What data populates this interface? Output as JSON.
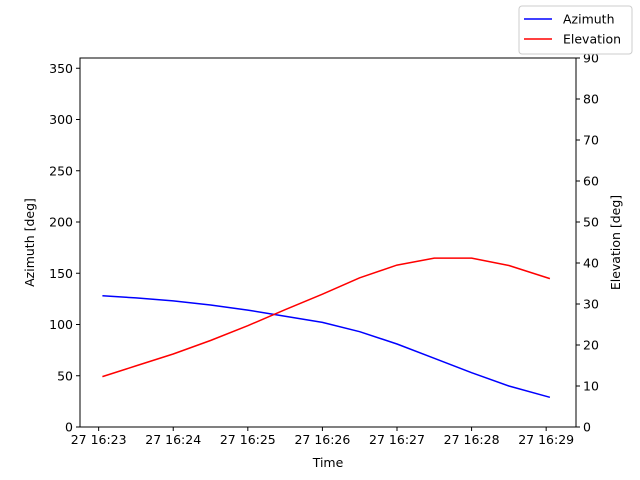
{
  "chart_data": {
    "type": "line",
    "xlabel": "Time",
    "ylabel_left": "Azimuth [deg]",
    "ylabel_right": "Elevation [deg]",
    "x_ticks": [
      "27 16:23",
      "27 16:24",
      "27 16:25",
      "27 16:26",
      "27 16:27",
      "27 16:28",
      "27 16:29"
    ],
    "xlim_minutes": [
      -0.25,
      6.4
    ],
    "ylim_left": [
      0,
      360
    ],
    "yticks_left": [
      0,
      50,
      100,
      150,
      200,
      250,
      300,
      350
    ],
    "ylim_right": [
      0,
      90
    ],
    "yticks_right": [
      0,
      10,
      20,
      30,
      40,
      50,
      60,
      70,
      80,
      90
    ],
    "legend_position": "top-right",
    "grid": false,
    "series": [
      {
        "name": "Azimuth",
        "color": "#0000ff",
        "axis": "left",
        "x": [
          0.05,
          0.5,
          1.0,
          1.5,
          2.0,
          2.5,
          3.0,
          3.5,
          4.0,
          4.5,
          5.0,
          5.5,
          6.05
        ],
        "values": [
          128,
          126,
          123,
          119,
          114,
          108,
          102,
          93,
          81,
          67,
          53,
          40,
          29
        ]
      },
      {
        "name": "Elevation",
        "color": "#ff0000",
        "axis": "right",
        "x": [
          0.05,
          0.5,
          1.0,
          1.5,
          2.0,
          2.5,
          3.0,
          3.5,
          4.0,
          4.5,
          5.0,
          5.5,
          6.05
        ],
        "values": [
          12.3,
          14.9,
          17.8,
          21.1,
          24.7,
          28.6,
          32.4,
          36.4,
          39.5,
          41.2,
          41.2,
          39.4,
          36.2
        ]
      }
    ]
  }
}
